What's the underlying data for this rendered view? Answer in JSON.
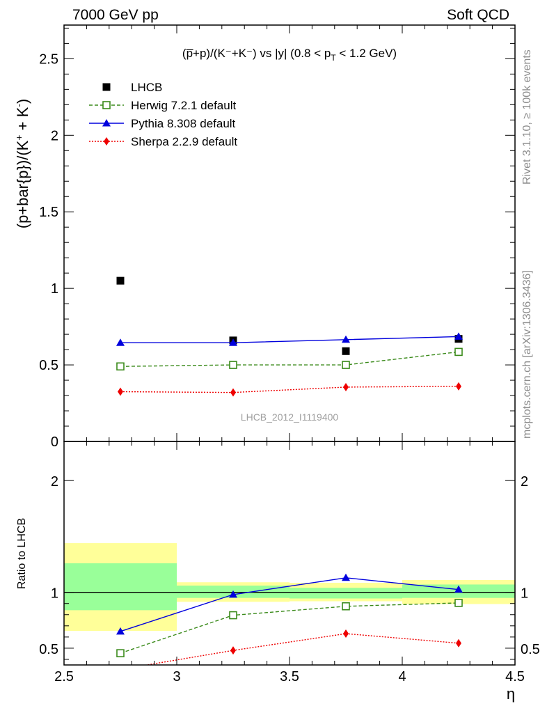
{
  "header": {
    "left": "7000 GeV pp",
    "right": "Soft QCD"
  },
  "side_labels": {
    "rivet": "Rivet 3.1.10, ≥ 100k events",
    "mcplots": "mcplots.cern.ch [arXiv:1306.3436]"
  },
  "colors": {
    "data": "#000000",
    "herwig": "#3a8a1a",
    "pythia": "#0000dd",
    "sherpa": "#ee0000",
    "band_inner": "#99ff99",
    "band_outer": "#ffff99"
  },
  "chart_data": [
    {
      "type": "scatter",
      "panel": "main",
      "title": "(p̅+p)/(K⁻+K⁻) vs |y| (0.8 < p",
      "title_sub": "T",
      "title_end": " < 1.2 GeV)",
      "ylabel": "(p+bar{p})/(K",
      "ylabel_sup1": "+",
      "ylabel_mid": " + K",
      "ylabel_sup2": "-",
      "ylabel_end": ")",
      "xlim": [
        2.5,
        4.5
      ],
      "ylim": [
        0,
        2.72
      ],
      "yticks": [
        {
          "value": 0,
          "label": "0"
        },
        {
          "value": 0.5,
          "label": "0.5"
        },
        {
          "value": 1,
          "label": "1"
        },
        {
          "value": 1.5,
          "label": "1.5"
        },
        {
          "value": 2,
          "label": "2"
        },
        {
          "value": 2.5,
          "label": "2.5"
        }
      ],
      "x": [
        2.75,
        3.25,
        3.75,
        4.25
      ],
      "x_edges": [
        2.5,
        3.0,
        3.5,
        4.0,
        4.5
      ],
      "analysis_tag": "LHCB_2012_I1119400",
      "legend_position": "top-left",
      "series": [
        {
          "name": "LHCB",
          "key": "data",
          "values": [
            1.05,
            0.66,
            0.59,
            0.67
          ],
          "marker": "square-filled"
        },
        {
          "name": "Herwig 7.2.1 default",
          "key": "herwig",
          "values": [
            0.49,
            0.5,
            0.5,
            0.585
          ],
          "marker": "square-open",
          "line": "dashed"
        },
        {
          "name": "Pythia 8.308 default",
          "key": "pythia",
          "values": [
            0.645,
            0.645,
            0.665,
            0.685
          ],
          "errors": [
            0.005,
            0.012,
            0.008,
            0.018
          ],
          "marker": "triangle",
          "line": "solid"
        },
        {
          "name": "Sherpa 2.2.9 default",
          "key": "sherpa",
          "values": [
            0.325,
            0.32,
            0.355,
            0.36
          ],
          "marker": "diamond",
          "line": "dotted"
        }
      ]
    },
    {
      "type": "scatter",
      "panel": "ratio",
      "ylabel": "Ratio to LHCB",
      "xlabel": "η",
      "xlim": [
        2.5,
        4.5
      ],
      "ylim": [
        0.35,
        2.35
      ],
      "xticks": [
        {
          "value": 2.5,
          "label": "2.5"
        },
        {
          "value": 3,
          "label": "3"
        },
        {
          "value": 3.5,
          "label": "3.5"
        },
        {
          "value": 4,
          "label": "4"
        },
        {
          "value": 4.5,
          "label": "4.5"
        }
      ],
      "yticks": [
        {
          "value": 0.5,
          "label": "0.5"
        },
        {
          "value": 1,
          "label": "1"
        },
        {
          "value": 2,
          "label": "2"
        }
      ],
      "bands": {
        "inner": [
          [
            0.84,
            1.26
          ],
          [
            0.95,
            1.06
          ],
          [
            0.945,
            1.04
          ],
          [
            0.95,
            1.07
          ]
        ],
        "outer": [
          [
            0.655,
            1.44
          ],
          [
            0.915,
            1.09
          ],
          [
            0.92,
            1.085
          ],
          [
            0.895,
            1.11
          ]
        ]
      },
      "series": [
        {
          "key": "herwig",
          "values": [
            0.455,
            0.795,
            0.875,
            0.905
          ],
          "marker": "square-open",
          "line": "dashed"
        },
        {
          "key": "pythia",
          "values": [
            0.65,
            0.98,
            1.13,
            1.025
          ],
          "errors": [
            0.015,
            0.02,
            0.02,
            0.025
          ],
          "marker": "triangle",
          "line": "solid"
        },
        {
          "key": "sherpa",
          "values": [
            0.31,
            0.48,
            0.63,
            0.545
          ],
          "errors": [
            0,
            0.025,
            0.03,
            0.03
          ],
          "marker": "diamond",
          "line": "dotted"
        }
      ]
    }
  ]
}
